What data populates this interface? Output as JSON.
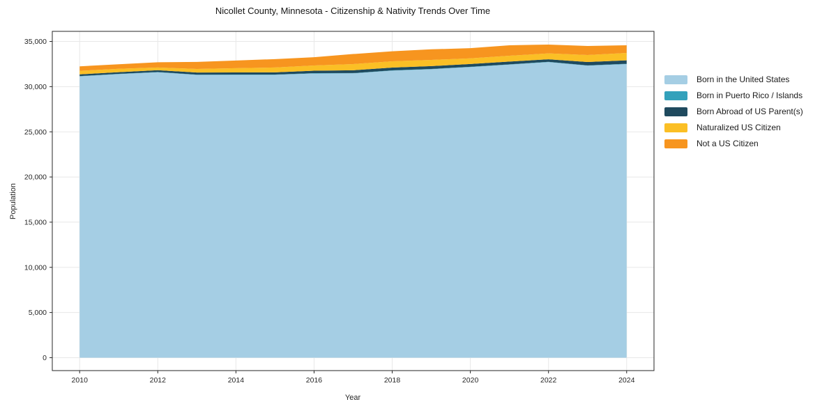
{
  "figure": {
    "title": "Nicollet County, Minnesota - Citizenship & Nativity Trends Over Time",
    "xlabel": "Year",
    "ylabel": "Population"
  },
  "chart_data": {
    "type": "area",
    "stacked": true,
    "title": "Nicollet County, Minnesota - Citizenship & Nativity Trends Over Time",
    "xlabel": "Year",
    "ylabel": "Population",
    "x": [
      2010,
      2011,
      2012,
      2013,
      2014,
      2015,
      2016,
      2017,
      2018,
      2019,
      2020,
      2021,
      2022,
      2023,
      2024
    ],
    "series": [
      {
        "name": "Born in the United States",
        "color": "#A5CEE4",
        "values": [
          31140,
          31390,
          31590,
          31300,
          31310,
          31310,
          31460,
          31470,
          31770,
          31930,
          32170,
          32440,
          32720,
          32320,
          32500
        ]
      },
      {
        "name": "Born in Puerto Rico / Islands",
        "color": "#33A1BB",
        "values": [
          30,
          30,
          30,
          30,
          30,
          30,
          30,
          30,
          30,
          30,
          30,
          30,
          30,
          30,
          30
        ]
      },
      {
        "name": "Born Abroad of US Parent(s)",
        "color": "#1F4A5E",
        "values": [
          190,
          180,
          200,
          230,
          230,
          240,
          270,
          310,
          310,
          310,
          310,
          310,
          280,
          380,
          380
        ]
      },
      {
        "name": "Naturalized US Citizen",
        "color": "#FBBF25",
        "values": [
          390,
          380,
          300,
          400,
          470,
          540,
          580,
          690,
          690,
          690,
          620,
          640,
          650,
          770,
          820
        ]
      },
      {
        "name": "Not a US Citizen",
        "color": "#F7951F",
        "values": [
          500,
          500,
          580,
          780,
          850,
          930,
          920,
          1110,
          1110,
          1170,
          1130,
          1160,
          980,
          1000,
          850
        ]
      }
    ],
    "xticks": [
      2010,
      2012,
      2014,
      2016,
      2018,
      2020,
      2022,
      2024
    ],
    "yticks": [
      0,
      5000,
      10000,
      15000,
      20000,
      25000,
      30000,
      35000
    ],
    "xlim": [
      2009.3,
      2024.7
    ],
    "ylim": [
      -1430,
      36120
    ],
    "grid": true,
    "legend_position": "outside-right"
  },
  "colors": {
    "background": "#ffffff",
    "grid": "#e8e8e8",
    "spine": "#262626",
    "tick_text": "#262626",
    "title_text": "#151515"
  }
}
